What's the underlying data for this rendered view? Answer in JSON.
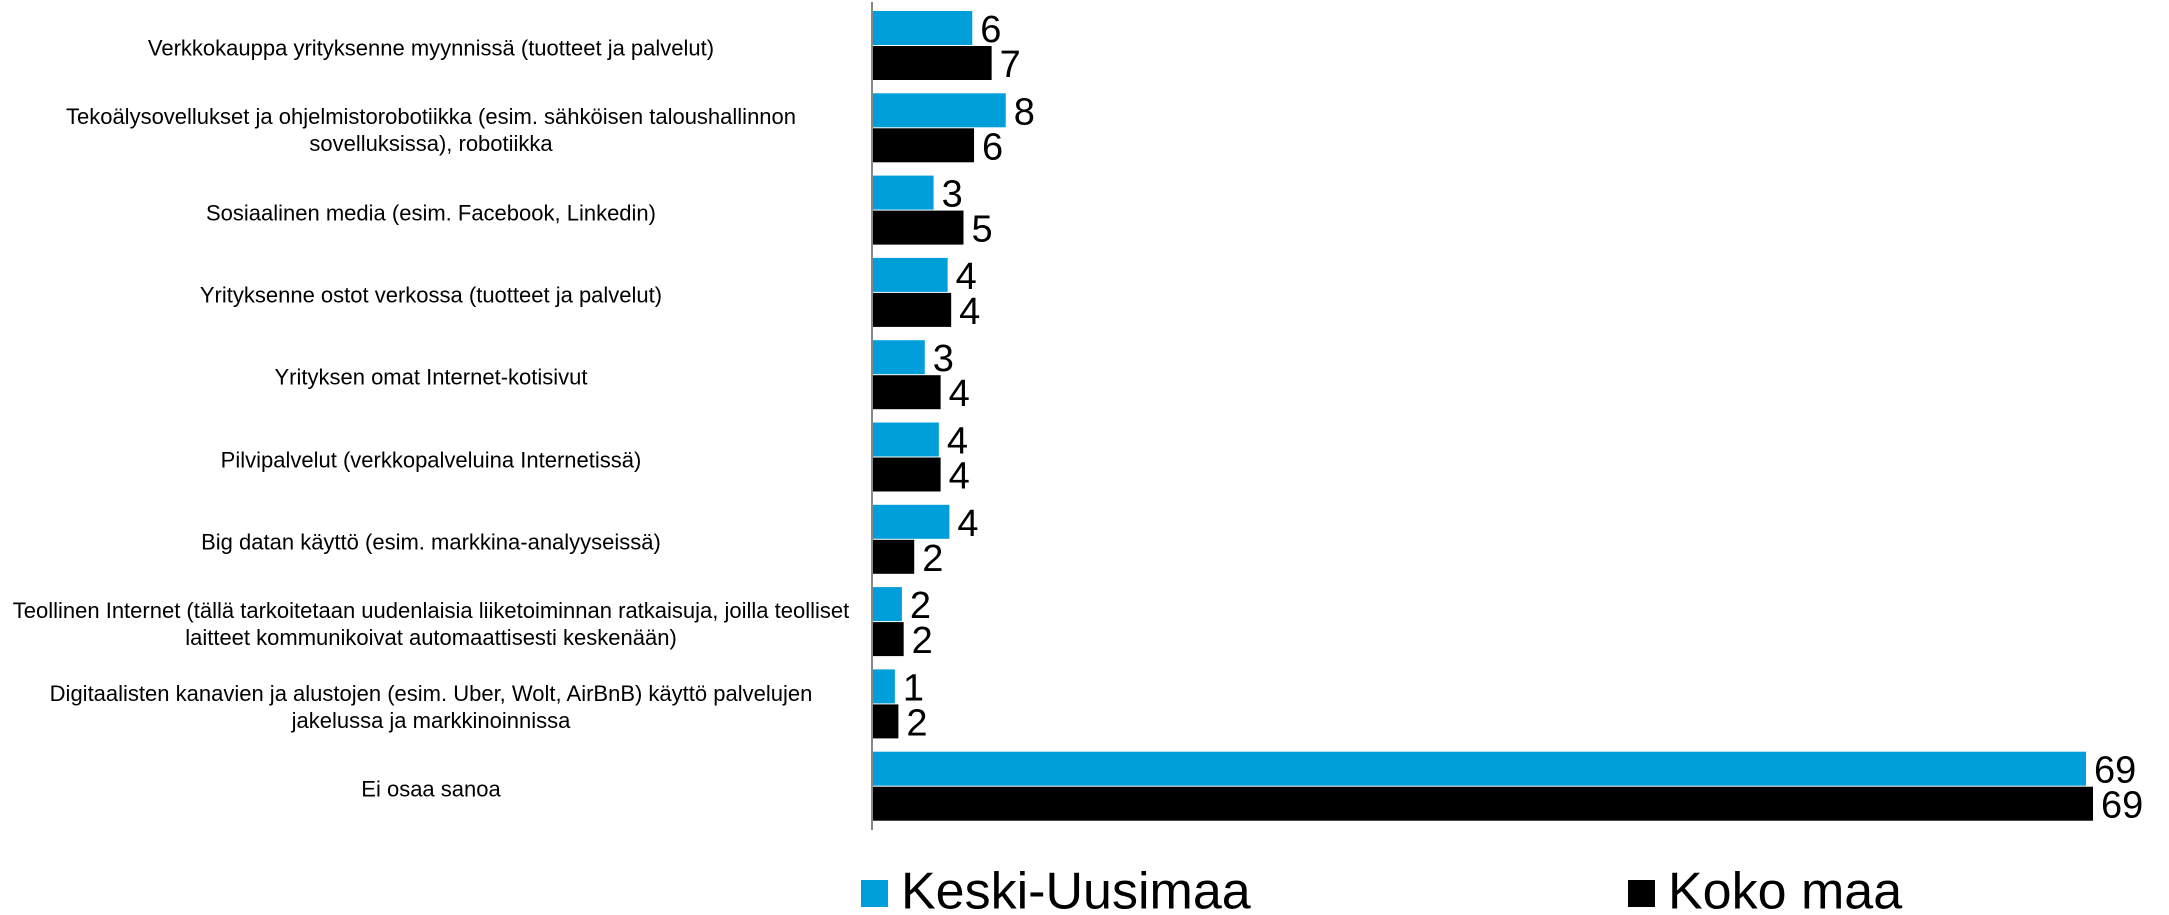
{
  "chart_data": {
    "type": "barh",
    "categories": [
      "Verkkokauppa yrityksenne myynnissä (tuotteet ja palvelut)",
      "Tekoälysovellukset ja ohjelmistorobotiikka (esim. sähköisen taloushallinnon sovelluksissa), robotiikka",
      "Sosiaalinen media (esim. Facebook, Linkedin)",
      "Yrityksenne ostot verkossa (tuotteet ja palvelut)",
      "Yrityksen omat Internet-kotisivut",
      "Pilvipalvelut  (verkkopalveluina Internetissä)",
      "Big datan käyttö (esim. markkina-analyyseissä)",
      "Teollinen Internet (tällä tarkoitetaan uudenlaisia liiketoiminnan ratkaisuja, joilla teolliset laitteet kommunikoivat automaattisesti keskenään)",
      "Digitaalisten kanavien ja alustojen (esim. Uber, Wolt, AirBnB) käyttö palvelujen jakelussa ja markkinoinnissa",
      "Ei osaa sanoa"
    ],
    "series": [
      {
        "name": "Keski-Uusimaa",
        "color": "#009fda",
        "values": [
          5.7,
          7.6,
          3.5,
          4.3,
          3.0,
          3.8,
          4.4,
          1.7,
          1.3,
          69.0
        ],
        "value_labels": [
          "6",
          "8",
          "3",
          "4",
          "3",
          "4",
          "4",
          "2",
          "1",
          "69"
        ]
      },
      {
        "name": "Koko maa",
        "color": "#000000",
        "values": [
          6.8,
          5.8,
          5.2,
          4.5,
          3.9,
          3.9,
          2.4,
          1.8,
          1.5,
          69.4
        ],
        "value_labels": [
          "7",
          "6",
          "5",
          "4",
          "4",
          "4",
          "2",
          "2",
          "2",
          "69"
        ]
      }
    ]
  }
}
